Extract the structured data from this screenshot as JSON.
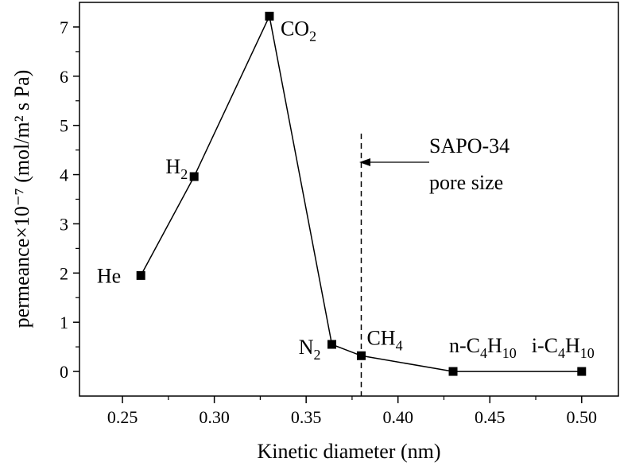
{
  "chart_data": {
    "type": "line",
    "x_label": "Kinetic diameter (nm)",
    "y_label": "permeance×10⁻⁷ (mol/m² s Pa)",
    "x": [
      0.26,
      0.289,
      0.33,
      0.364,
      0.38,
      0.43,
      0.5
    ],
    "values": [
      1.95,
      3.96,
      7.22,
      0.55,
      0.32,
      0.0,
      0.0
    ],
    "point_labels": [
      "He",
      "H2",
      "CO2",
      "N2",
      "CH4",
      "n-C4H10",
      "i-C4H10"
    ],
    "color": "#000000",
    "xlim": [
      0.2266,
      0.52
    ],
    "ylim": [
      -0.5,
      7.5
    ],
    "xticks": [
      {
        "value": 0.25,
        "label": "0.25"
      },
      {
        "value": 0.3,
        "label": "0.30"
      },
      {
        "value": 0.35,
        "label": "0.35"
      },
      {
        "value": 0.4,
        "label": "0.40"
      },
      {
        "value": 0.45,
        "label": "0.45"
      },
      {
        "value": 0.5,
        "label": "0.50"
      }
    ],
    "yticks": [
      0,
      1,
      2,
      3,
      4,
      5,
      6,
      7
    ],
    "vline": 0.38,
    "annotation": [
      "SAPO-34",
      "pore size"
    ]
  }
}
